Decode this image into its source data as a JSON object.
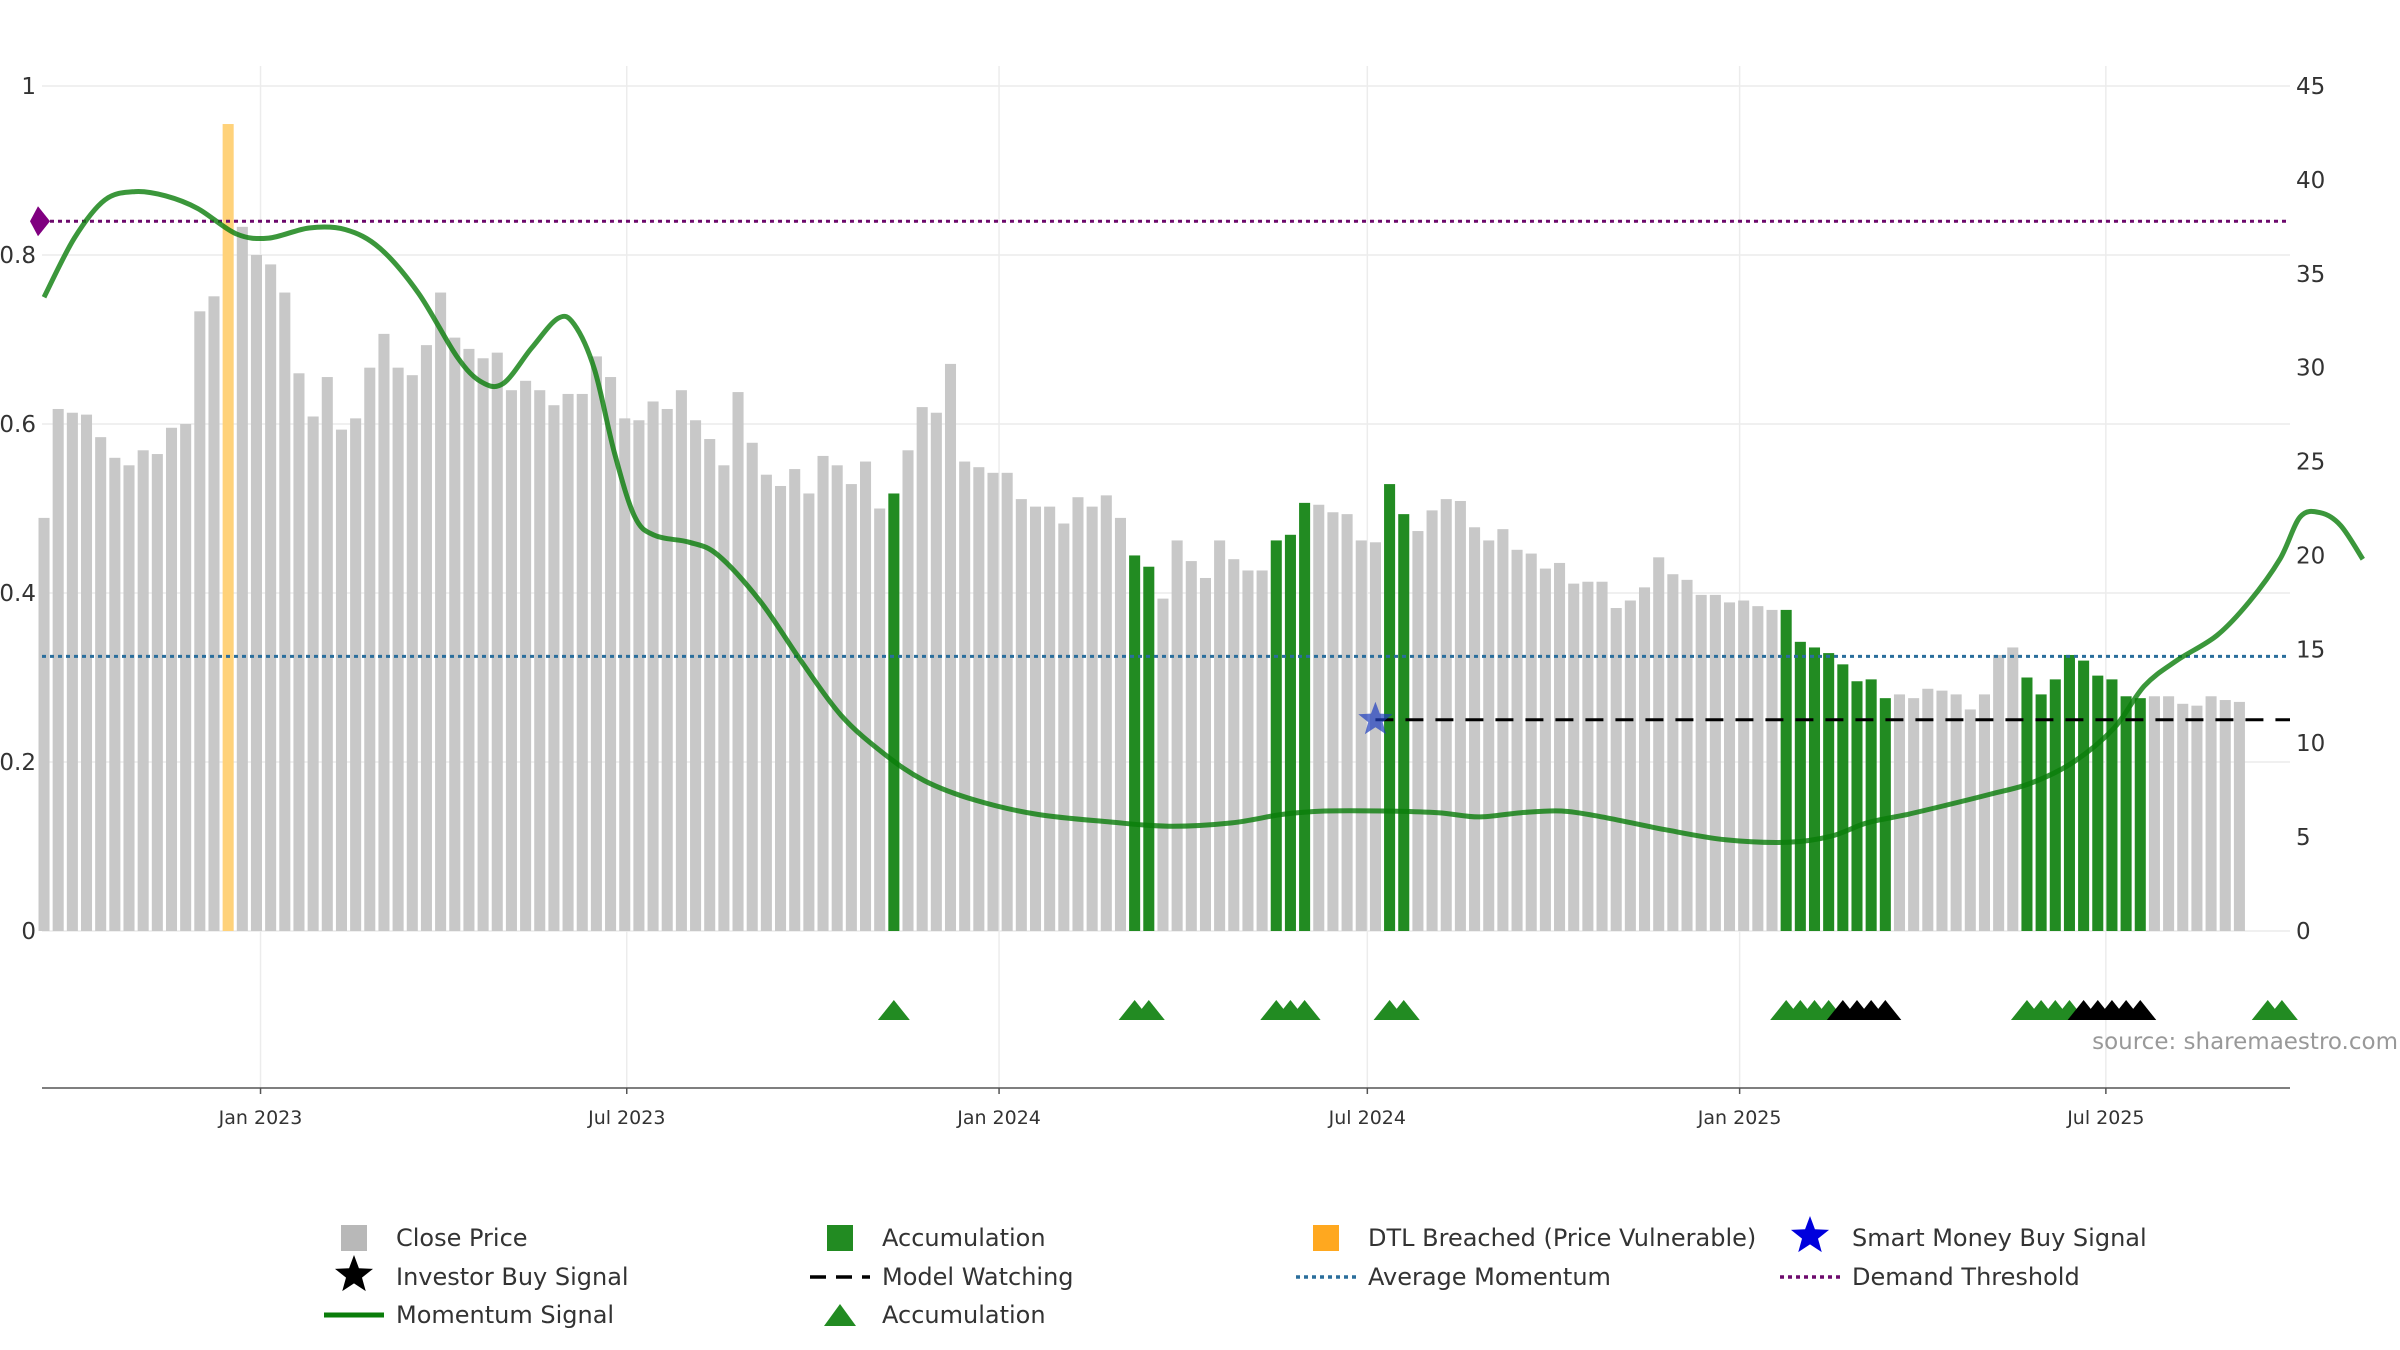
{
  "chart_data": {
    "type": "bar",
    "left_axis": {
      "ticks": [
        0,
        0.2,
        0.4,
        0.6,
        0.8,
        1
      ],
      "tick_labels": [
        "0",
        "0.2",
        "0.4",
        "0.6",
        "0.8",
        "1"
      ],
      "ylim": [
        0,
        1
      ]
    },
    "right_axis": {
      "ticks": [
        0,
        5,
        10,
        15,
        20,
        25,
        30,
        35,
        40,
        45
      ],
      "tick_labels": [
        "0",
        "5",
        "10",
        "15",
        "20",
        "25",
        "30",
        "35",
        "40",
        "45"
      ],
      "ylim": [
        0,
        45
      ]
    },
    "x_axis": {
      "start": "2022-09-15",
      "end": "2025-09-30",
      "ticks": [
        "2023-01-01",
        "2023-07-01",
        "2024-01-01",
        "2024-07-01",
        "2025-01-01",
        "2025-07-01"
      ],
      "tick_labels": [
        "Jan 2023",
        "Jul 2023",
        "Jan 2024",
        "Jul 2024",
        "Jan 2025",
        "Jul 2025"
      ]
    },
    "grid": true,
    "legend_position": "bottom",
    "source_note": "source: sharemaestro.com",
    "bar_start_date": "2022-09-16",
    "bar_interval_days": 7,
    "close_price": [
      22.0,
      27.8,
      27.6,
      27.5,
      26.3,
      25.2,
      24.8,
      25.6,
      25.4,
      26.8,
      27.0,
      33.0,
      33.8,
      42.0,
      37.5,
      36.0,
      35.5,
      34.0,
      29.7,
      27.4,
      29.5,
      26.7,
      27.3,
      30.0,
      31.8,
      30.0,
      29.6,
      31.2,
      34.0,
      31.6,
      31.0,
      30.5,
      30.8,
      28.8,
      29.3,
      28.8,
      28.0,
      28.6,
      28.6,
      30.6,
      29.5,
      27.3,
      27.2,
      28.2,
      27.8,
      28.8,
      27.2,
      26.2,
      24.8,
      28.7,
      26.0,
      24.3,
      23.7,
      24.6,
      23.3,
      25.3,
      24.8,
      23.8,
      25.0,
      22.5,
      23.3,
      25.6,
      27.9,
      27.6,
      30.2,
      25.0,
      24.7,
      24.4,
      24.4,
      23.0,
      22.6,
      22.6,
      21.7,
      23.1,
      22.6,
      23.2,
      22.0,
      20.0,
      19.4,
      17.7,
      20.8,
      19.7,
      18.8,
      20.8,
      19.8,
      19.2,
      19.2,
      20.8,
      21.1,
      22.8,
      22.7,
      22.3,
      22.2,
      20.8,
      20.7,
      23.8,
      22.2,
      21.3,
      22.4,
      23.0,
      22.9,
      21.5,
      20.8,
      21.4,
      20.3,
      20.1,
      19.3,
      19.6,
      18.5,
      18.6,
      18.6,
      17.2,
      17.6,
      18.3,
      19.9,
      19.0,
      18.7,
      17.9,
      17.9,
      17.5,
      17.6,
      17.3,
      17.1,
      17.1,
      15.4,
      15.1,
      14.8,
      14.2,
      13.3,
      13.4,
      12.4,
      12.6,
      12.4,
      12.9,
      12.8,
      12.6,
      11.8,
      12.6,
      14.7,
      15.1,
      13.5,
      12.6,
      13.4,
      14.7,
      14.4,
      13.6,
      13.4,
      12.5,
      12.4,
      12.5,
      12.5,
      12.1,
      12.0,
      12.5,
      12.3,
      12.2
    ],
    "accumulation_weeks": [
      60,
      77,
      78,
      87,
      88,
      89,
      95,
      96,
      123,
      124,
      125,
      126,
      127,
      128,
      129,
      130,
      140,
      141,
      142,
      143,
      144,
      145,
      146,
      147,
      148,
      157,
      158
    ],
    "dtl_breached_weeks": [
      13
    ],
    "accumulation_markers_weeks": [
      60,
      77,
      78,
      87,
      88,
      89,
      95,
      96,
      123,
      124,
      125,
      126,
      140,
      141,
      142,
      143,
      157,
      158
    ],
    "investor_buy_weeks": [
      127,
      128,
      129,
      130,
      144,
      145,
      146,
      147,
      148
    ],
    "momentum_signal": [
      {
        "date": "2022-09-16",
        "value": 0.75
      },
      {
        "date": "2022-10-01",
        "value": 0.82
      },
      {
        "date": "2022-10-16",
        "value": 0.865
      },
      {
        "date": "2022-10-31",
        "value": 0.875
      },
      {
        "date": "2022-11-15",
        "value": 0.87
      },
      {
        "date": "2022-12-01",
        "value": 0.855
      },
      {
        "date": "2022-12-20",
        "value": 0.825
      },
      {
        "date": "2023-01-05",
        "value": 0.82
      },
      {
        "date": "2023-01-25",
        "value": 0.832
      },
      {
        "date": "2023-02-12",
        "value": 0.83
      },
      {
        "date": "2023-03-01",
        "value": 0.808
      },
      {
        "date": "2023-03-20",
        "value": 0.755
      },
      {
        "date": "2023-04-08",
        "value": 0.68
      },
      {
        "date": "2023-04-20",
        "value": 0.65
      },
      {
        "date": "2023-05-01",
        "value": 0.648
      },
      {
        "date": "2023-05-15",
        "value": 0.69
      },
      {
        "date": "2023-05-28",
        "value": 0.725
      },
      {
        "date": "2023-06-05",
        "value": 0.718
      },
      {
        "date": "2023-06-15",
        "value": 0.665
      },
      {
        "date": "2023-06-25",
        "value": 0.565
      },
      {
        "date": "2023-07-05",
        "value": 0.49
      },
      {
        "date": "2023-07-15",
        "value": 0.468
      },
      {
        "date": "2023-08-01",
        "value": 0.46
      },
      {
        "date": "2023-08-15",
        "value": 0.445
      },
      {
        "date": "2023-09-05",
        "value": 0.39
      },
      {
        "date": "2023-09-25",
        "value": 0.32
      },
      {
        "date": "2023-10-15",
        "value": 0.255
      },
      {
        "date": "2023-11-05",
        "value": 0.21
      },
      {
        "date": "2023-11-25",
        "value": 0.178
      },
      {
        "date": "2023-12-20",
        "value": 0.155
      },
      {
        "date": "2024-01-20",
        "value": 0.138
      },
      {
        "date": "2024-02-25",
        "value": 0.129
      },
      {
        "date": "2024-03-25",
        "value": 0.124
      },
      {
        "date": "2024-04-25",
        "value": 0.128
      },
      {
        "date": "2024-05-20",
        "value": 0.138
      },
      {
        "date": "2024-06-10",
        "value": 0.142
      },
      {
        "date": "2024-07-10",
        "value": 0.142
      },
      {
        "date": "2024-08-05",
        "value": 0.14
      },
      {
        "date": "2024-08-25",
        "value": 0.135
      },
      {
        "date": "2024-09-15",
        "value": 0.14
      },
      {
        "date": "2024-10-05",
        "value": 0.142
      },
      {
        "date": "2024-10-25",
        "value": 0.135
      },
      {
        "date": "2024-11-25",
        "value": 0.12
      },
      {
        "date": "2024-12-25",
        "value": 0.108
      },
      {
        "date": "2025-01-25",
        "value": 0.105
      },
      {
        "date": "2025-02-15",
        "value": 0.112
      },
      {
        "date": "2025-03-05",
        "value": 0.128
      },
      {
        "date": "2025-03-25",
        "value": 0.138
      },
      {
        "date": "2025-04-15",
        "value": 0.15
      },
      {
        "date": "2025-05-05",
        "value": 0.162
      },
      {
        "date": "2025-05-25",
        "value": 0.175
      },
      {
        "date": "2025-06-15",
        "value": 0.2
      },
      {
        "date": "2025-07-05",
        "value": 0.24
      },
      {
        "date": "2025-07-20",
        "value": 0.29
      },
      {
        "date": "2025-08-05",
        "value": 0.32
      },
      {
        "date": "2025-08-25",
        "value": 0.35
      },
      {
        "date": "2025-09-10",
        "value": 0.39
      },
      {
        "date": "2025-09-25",
        "value": 0.44
      },
      {
        "date": "2025-10-05",
        "value": 0.49
      },
      {
        "date": "2025-10-15",
        "value": 0.495
      },
      {
        "date": "2025-10-25",
        "value": 0.48
      },
      {
        "date": "2025-11-05",
        "value": 0.44
      }
    ],
    "average_momentum": 0.325,
    "demand_threshold": 0.84,
    "model_watching": {
      "start": "2024-07-05",
      "end": "2025-09-30",
      "value": 0.25
    },
    "smart_money_buy": {
      "date": "2024-07-05",
      "value": 0.25
    },
    "legend": [
      {
        "label": "Close Price",
        "marker": "gray-square"
      },
      {
        "label": "Accumulation",
        "marker": "green-square"
      },
      {
        "label": "DTL Breached (Price Vulnerable)",
        "marker": "orange-square"
      },
      {
        "label": "Smart Money Buy Signal",
        "marker": "blue-star"
      },
      {
        "label": "Investor Buy Signal",
        "marker": "black-star"
      },
      {
        "label": "Model Watching",
        "marker": "black-dashed-line"
      },
      {
        "label": "Average Momentum",
        "marker": "blue-dotted-line"
      },
      {
        "label": "Demand Threshold",
        "marker": "purple-dotted-line"
      },
      {
        "label": "Momentum Signal",
        "marker": "green-line"
      },
      {
        "label": "Accumulation",
        "marker": "green-triangle"
      }
    ]
  },
  "colors": {
    "close_price": "#c8c8c8",
    "accumulation": "#228b22",
    "dtl_breached": "#ffd27a",
    "momentum": "#0a7d0a",
    "average_momentum": "#2a6e9c",
    "demand_threshold": "#6d0a6d",
    "investor_buy": "#000000",
    "smart_money": "#1f3fbf"
  }
}
